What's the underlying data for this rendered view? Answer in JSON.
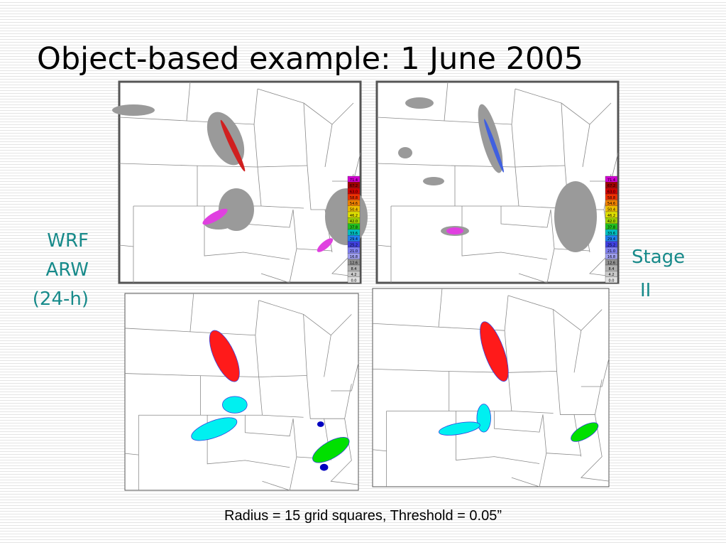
{
  "title": "Object-based example: 1 June 2005",
  "labels": {
    "model": [
      "WRF",
      "ARW",
      "(24-h)"
    ],
    "observed": [
      "Stage",
      "II"
    ]
  },
  "colorbar": [
    "71.4",
    "67.2",
    "63.0",
    "58.8",
    "54.6",
    "50.4",
    "46.2",
    "42.0",
    "37.8",
    "33.6",
    "29.4",
    "25.2",
    "21.0",
    "16.8",
    "12.6",
    "8.4",
    "4.2",
    "0.0"
  ],
  "caption": "Radius = 15 grid squares, Threshold = 0.05”"
}
